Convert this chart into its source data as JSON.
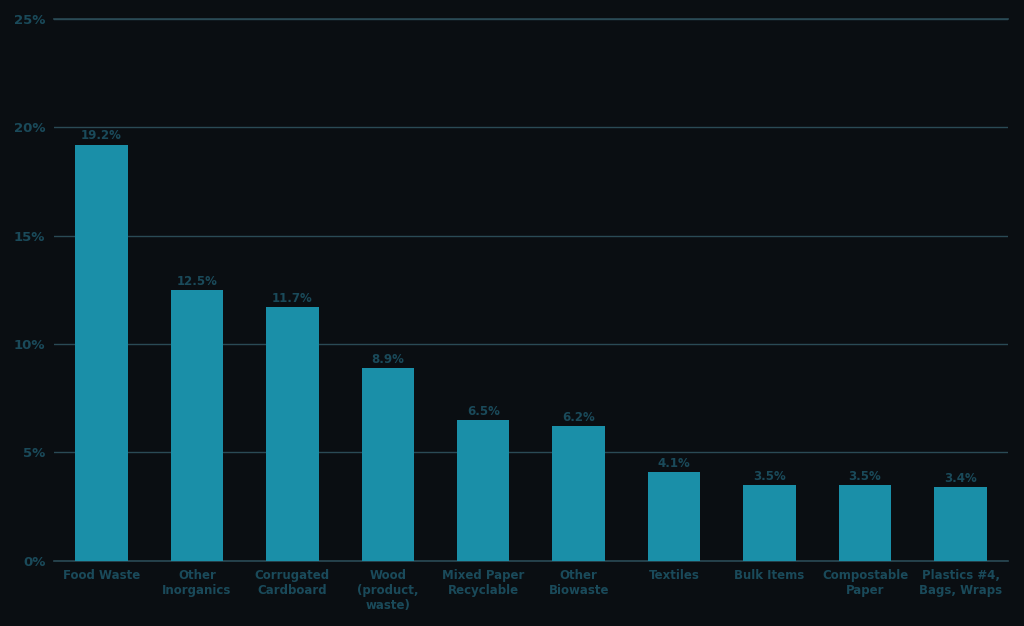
{
  "categories": [
    "Food Waste",
    "Other\nInorganics",
    "Corrugated\nCardboard",
    "Wood\n(product,\nwaste)",
    "Mixed Paper\nRecyclable",
    "Other\nBiowaste",
    "Textiles",
    "Bulk Items",
    "Compostable\nPaper",
    "Plastics #4,\nBags, Wraps"
  ],
  "values": [
    19.2,
    12.5,
    11.7,
    8.9,
    6.5,
    6.2,
    4.1,
    3.5,
    3.5,
    3.4
  ],
  "labels": [
    "19.2%",
    "12.5%",
    "11.7%",
    "8.9%",
    "6.5%",
    "6.2%",
    "4.1%",
    "3.5%",
    "3.5%",
    "3.4%"
  ],
  "bar_color": "#1A8FA8",
  "background_color": "#0A0E12",
  "text_color": "#1A4A5A",
  "label_color": "#1A4A5A",
  "grid_color": "#2A4A55",
  "ylim": [
    0,
    25
  ],
  "yticks": [
    0,
    5,
    10,
    15,
    20,
    25
  ],
  "ytick_labels": [
    "0%",
    "5%",
    "10%",
    "15%",
    "20%",
    "25%"
  ]
}
